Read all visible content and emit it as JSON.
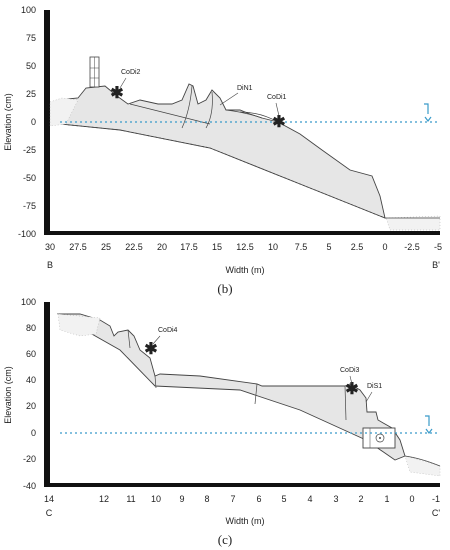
{
  "panels": [
    {
      "id": "b",
      "caption": "(b)",
      "ylabel": "Elevation (cm)",
      "xlabel": "Width (m)",
      "yticks": [
        "100",
        "75",
        "50",
        "25",
        "0",
        "-25",
        "-50",
        "-75",
        "-100"
      ],
      "xticks": [
        "30",
        "27.5",
        "25",
        "22.5",
        "20",
        "17.5",
        "15",
        "12.5",
        "10",
        "7.5",
        "5",
        "2.5",
        "0",
        "-2.5",
        "-5"
      ],
      "left_end": "B",
      "right_end": "B'",
      "features": [
        "CoDi2",
        "DiN1",
        "CoDi1"
      ]
    },
    {
      "id": "c",
      "caption": "(c)",
      "ylabel": "Elevation (cm)",
      "xlabel": "Width (m)",
      "yticks": [
        "100",
        "80",
        "60",
        "40",
        "20",
        "0",
        "-20",
        "-40"
      ],
      "xticks": [
        "14",
        "12",
        "11",
        "10",
        "9",
        "8",
        "7",
        "6",
        "5",
        "4",
        "3",
        "2",
        "1",
        "0",
        "-1"
      ],
      "left_end": "C",
      "right_end": "C'",
      "features": [
        "CoDi4",
        "CoDi3",
        "DiS1"
      ]
    }
  ],
  "colors": {
    "fill": "#e6e6e6",
    "water_line": "#3a9bc9",
    "stroke": "#444444"
  }
}
